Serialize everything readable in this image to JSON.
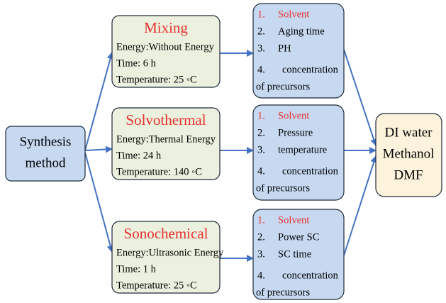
{
  "source": {
    "lines": [
      "Synthesis",
      "method"
    ]
  },
  "methods": [
    {
      "title": "Mixing",
      "lines": [
        "Energy:Without Energy",
        "Time: 6 h",
        "Temperature: 25 ◦C"
      ]
    },
    {
      "title": "Solvothermal",
      "lines": [
        "Energy:Thermal Energy",
        "Time: 24 h",
        "Temperature: 140 ◦C"
      ]
    },
    {
      "title": "Sonochemical",
      "lines": [
        "Energy:Ultrasonic Energy",
        "Time: 1 h",
        "Temperature: 25 ◦C"
      ]
    }
  ],
  "factors": [
    {
      "items": [
        {
          "num": "1.",
          "text": "Solvent"
        },
        {
          "num": "2.",
          "text": "Aging time"
        },
        {
          "num": "3.",
          "text": "PH"
        },
        {
          "num": "4.",
          "text": "concentration",
          "cont": "of precursors"
        }
      ]
    },
    {
      "items": [
        {
          "num": "1.",
          "text": "Solvent"
        },
        {
          "num": "2.",
          "text": "Pressure"
        },
        {
          "num": "3.",
          "text": "temperature"
        },
        {
          "num": "4.",
          "text": "concentration",
          "cont": "of precursors"
        }
      ]
    },
    {
      "items": [
        {
          "num": "1.",
          "text": "Solvent"
        },
        {
          "num": "2.",
          "text": "Power SC"
        },
        {
          "num": "3.",
          "text": "SC time"
        },
        {
          "num": "4.",
          "text": "concentration",
          "cont": "of precursors"
        }
      ]
    }
  ],
  "target": {
    "lines": [
      "DI water",
      "Methanol",
      "DMF"
    ]
  }
}
